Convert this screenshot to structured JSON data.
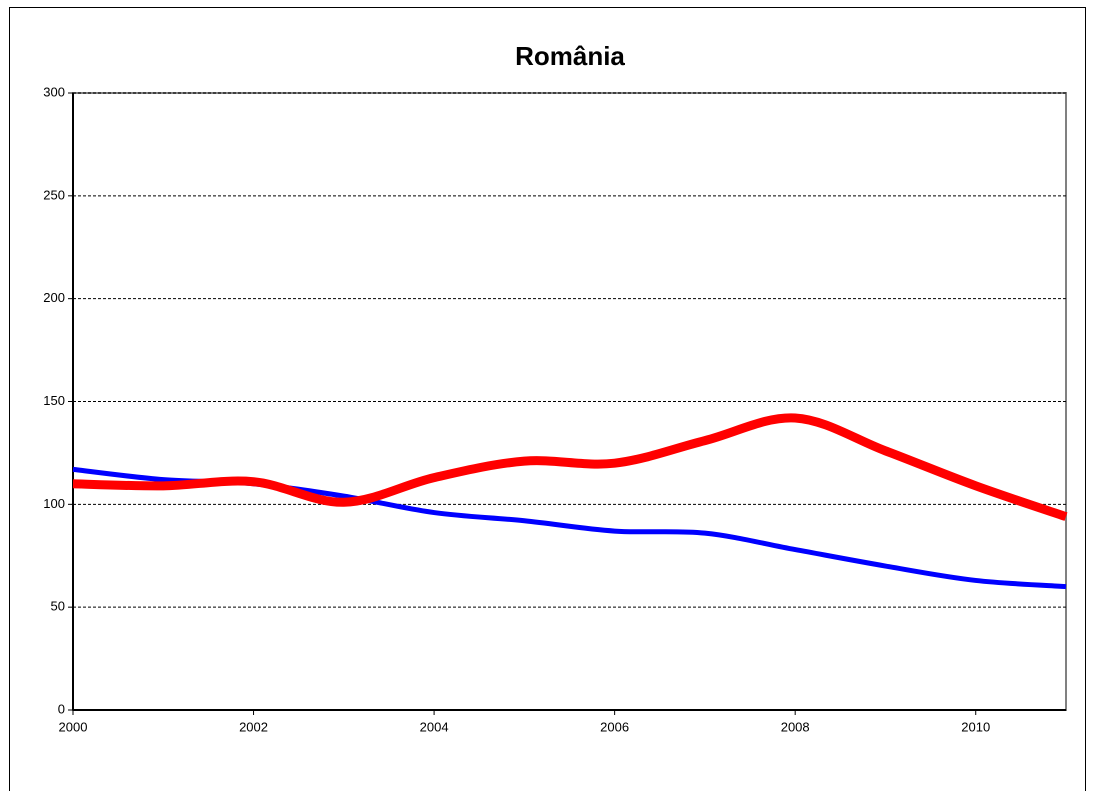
{
  "chart_data": {
    "type": "line",
    "title": "România",
    "x": [
      2000,
      2001,
      2002,
      2003,
      2004,
      2005,
      2006,
      2007,
      2008,
      2009,
      2010,
      2011
    ],
    "series": [
      {
        "color": "#ff0000",
        "values": [
          110,
          109,
          111,
          101,
          113,
          121,
          120,
          131,
          142,
          126,
          109,
          94
        ]
      },
      {
        "color": "#0000ff",
        "values": [
          117,
          112,
          110,
          104,
          96,
          92,
          87,
          86,
          78,
          70,
          63,
          60
        ]
      }
    ],
    "xlim": [
      2000,
      2011
    ],
    "xticks": [
      2000,
      2002,
      2004,
      2006,
      2008,
      2010
    ],
    "ylim": [
      0,
      300
    ],
    "yticks": [
      0,
      50,
      100,
      150,
      200,
      250,
      300
    ],
    "grid": true
  }
}
